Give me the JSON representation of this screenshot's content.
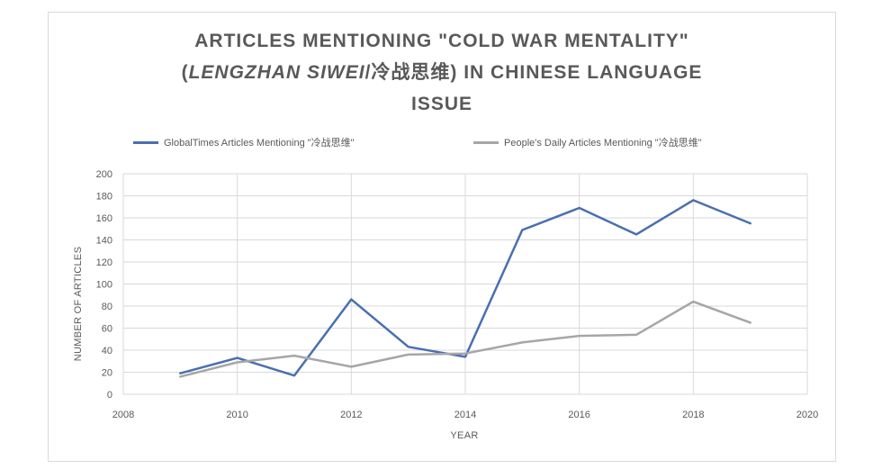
{
  "chart_data": {
    "type": "line",
    "title_parts": {
      "line1": "ARTICLES MENTIONING \"COLD WAR MENTALITY\"",
      "line2_open": "(",
      "line2_italic": "LENGZHAN SIWEI",
      "line2_rest": "/冷战思维) IN CHINESE LANGUAGE",
      "line3": "ISSUE"
    },
    "xlabel": "YEAR",
    "ylabel": "NUMBER OF ARTICLES",
    "xlim": [
      2008,
      2020
    ],
    "ylim": [
      0,
      200
    ],
    "x_ticks": [
      2008,
      2010,
      2012,
      2014,
      2016,
      2018,
      2020
    ],
    "y_ticks": [
      0,
      20,
      40,
      60,
      80,
      100,
      120,
      140,
      160,
      180,
      200
    ],
    "grid": true,
    "legend_position": "top",
    "x": [
      2009,
      2010,
      2011,
      2012,
      2013,
      2014,
      2015,
      2016,
      2017,
      2018,
      2019
    ],
    "series": [
      {
        "name": "GlobalTimes Articles Mentioning \"冷战思维\"",
        "color": "#4a6fb0",
        "values": [
          19,
          33,
          17,
          86,
          43,
          34,
          149,
          169,
          145,
          176,
          155
        ]
      },
      {
        "name": "People's Daily Articles Mentioning \"冷战思维\"",
        "color": "#a6a6a6",
        "values": [
          16,
          29,
          35,
          25,
          36,
          37,
          47,
          53,
          54,
          84,
          65
        ]
      }
    ]
  }
}
